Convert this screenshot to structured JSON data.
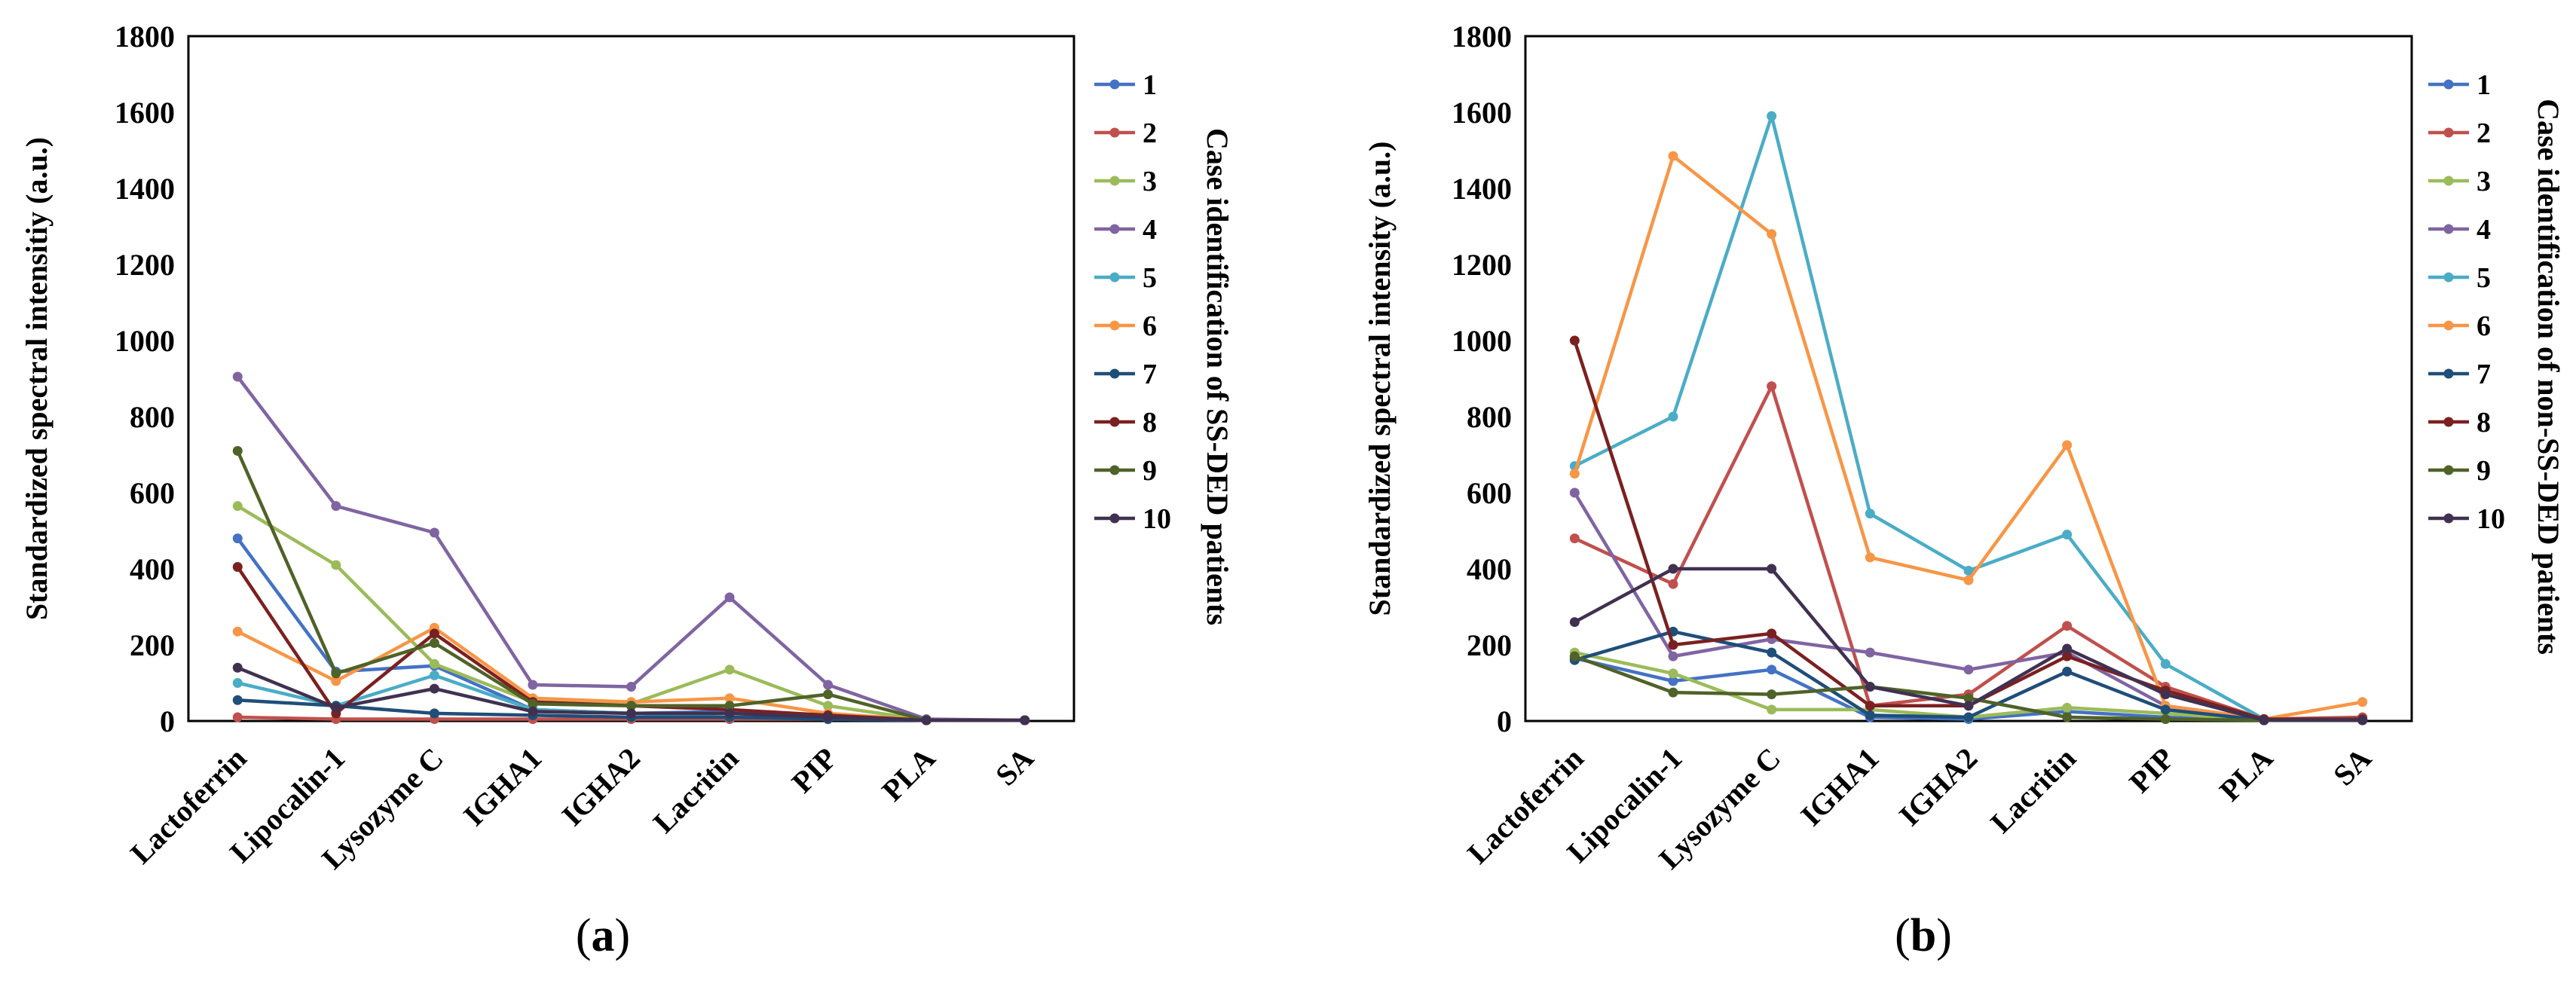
{
  "chart_data": [
    {
      "type": "line",
      "panel_label": "a",
      "ylabel": "Standardized spectral intensitiy (a.u.)",
      "legend_title": "Case identification of SS-DED patients",
      "categories": [
        "Lactoferrin",
        "Lipocalin-1",
        "Lysozyme C",
        "IGHA1",
        "IGHA2",
        "Lacritin",
        "PIP",
        "PLA",
        "SA"
      ],
      "ylim": [
        0,
        1800
      ],
      "yticks": [
        "0",
        "200",
        "400",
        "600",
        "800",
        "1000",
        "1200",
        "1400",
        "1600",
        "1800"
      ],
      "series": [
        {
          "name": "1",
          "color": "#4472C4",
          "values": [
            480,
            130,
            145,
            30,
            20,
            25,
            10,
            2,
            2
          ]
        },
        {
          "name": "2",
          "color": "#C0504D",
          "values": [
            10,
            5,
            5,
            5,
            5,
            5,
            5,
            2,
            2
          ]
        },
        {
          "name": "3",
          "color": "#9BBB59",
          "values": [
            565,
            410,
            150,
            50,
            45,
            135,
            40,
            2,
            2
          ]
        },
        {
          "name": "4",
          "color": "#8064A2",
          "values": [
            905,
            565,
            495,
            95,
            90,
            325,
            95,
            5,
            2
          ]
        },
        {
          "name": "5",
          "color": "#4BACC6",
          "values": [
            100,
            40,
            120,
            30,
            20,
            10,
            10,
            2,
            2
          ]
        },
        {
          "name": "6",
          "color": "#F79646",
          "values": [
            235,
            105,
            245,
            60,
            50,
            60,
            20,
            2,
            2
          ]
        },
        {
          "name": "7",
          "color": "#1F4E79",
          "values": [
            55,
            40,
            20,
            15,
            10,
            10,
            5,
            2,
            2
          ]
        },
        {
          "name": "8",
          "color": "#7B2020",
          "values": [
            405,
            20,
            230,
            50,
            40,
            30,
            15,
            2,
            2
          ]
        },
        {
          "name": "9",
          "color": "#4F6228",
          "values": [
            710,
            125,
            205,
            45,
            40,
            40,
            70,
            2,
            2
          ]
        },
        {
          "name": "10",
          "color": "#403151",
          "values": [
            140,
            35,
            85,
            25,
            20,
            20,
            10,
            2,
            2
          ]
        }
      ]
    },
    {
      "type": "line",
      "panel_label": "b",
      "ylabel": "Standardized spectral intensity (a.u.)",
      "legend_title": "Case identification of non-SS-DED patients",
      "categories": [
        "Lactoferrin",
        "Lipocalin-1",
        "Lysozyme C",
        "IGHA1",
        "IGHA2",
        "Lacritin",
        "PIP",
        "PLA",
        "SA"
      ],
      "ylim": [
        0,
        1800
      ],
      "yticks": [
        "0",
        "200",
        "400",
        "600",
        "800",
        "1000",
        "1200",
        "1400",
        "1600",
        "1800"
      ],
      "series": [
        {
          "name": "1",
          "color": "#4472C4",
          "values": [
            165,
            105,
            135,
            10,
            5,
            25,
            10,
            2,
            5
          ]
        },
        {
          "name": "2",
          "color": "#C0504D",
          "values": [
            480,
            360,
            880,
            40,
            70,
            250,
            90,
            5,
            10
          ]
        },
        {
          "name": "3",
          "color": "#9BBB59",
          "values": [
            180,
            125,
            30,
            30,
            10,
            35,
            20,
            2,
            2
          ]
        },
        {
          "name": "4",
          "color": "#8064A2",
          "values": [
            600,
            170,
            215,
            180,
            135,
            180,
            40,
            5,
            5
          ]
        },
        {
          "name": "5",
          "color": "#4BACC6",
          "values": [
            670,
            800,
            1590,
            545,
            395,
            490,
            150,
            5,
            5
          ]
        },
        {
          "name": "6",
          "color": "#F79646",
          "values": [
            650,
            1485,
            1280,
            430,
            370,
            725,
            40,
            5,
            50
          ]
        },
        {
          "name": "7",
          "color": "#1F4E79",
          "values": [
            160,
            235,
            180,
            15,
            10,
            130,
            30,
            2,
            2
          ]
        },
        {
          "name": "8",
          "color": "#7B2020",
          "values": [
            1000,
            200,
            230,
            40,
            40,
            170,
            80,
            5,
            5
          ]
        },
        {
          "name": "9",
          "color": "#4F6228",
          "values": [
            170,
            75,
            70,
            90,
            60,
            10,
            5,
            2,
            2
          ]
        },
        {
          "name": "10",
          "color": "#403151",
          "values": [
            260,
            400,
            400,
            90,
            40,
            190,
            70,
            2,
            2
          ]
        }
      ]
    }
  ]
}
